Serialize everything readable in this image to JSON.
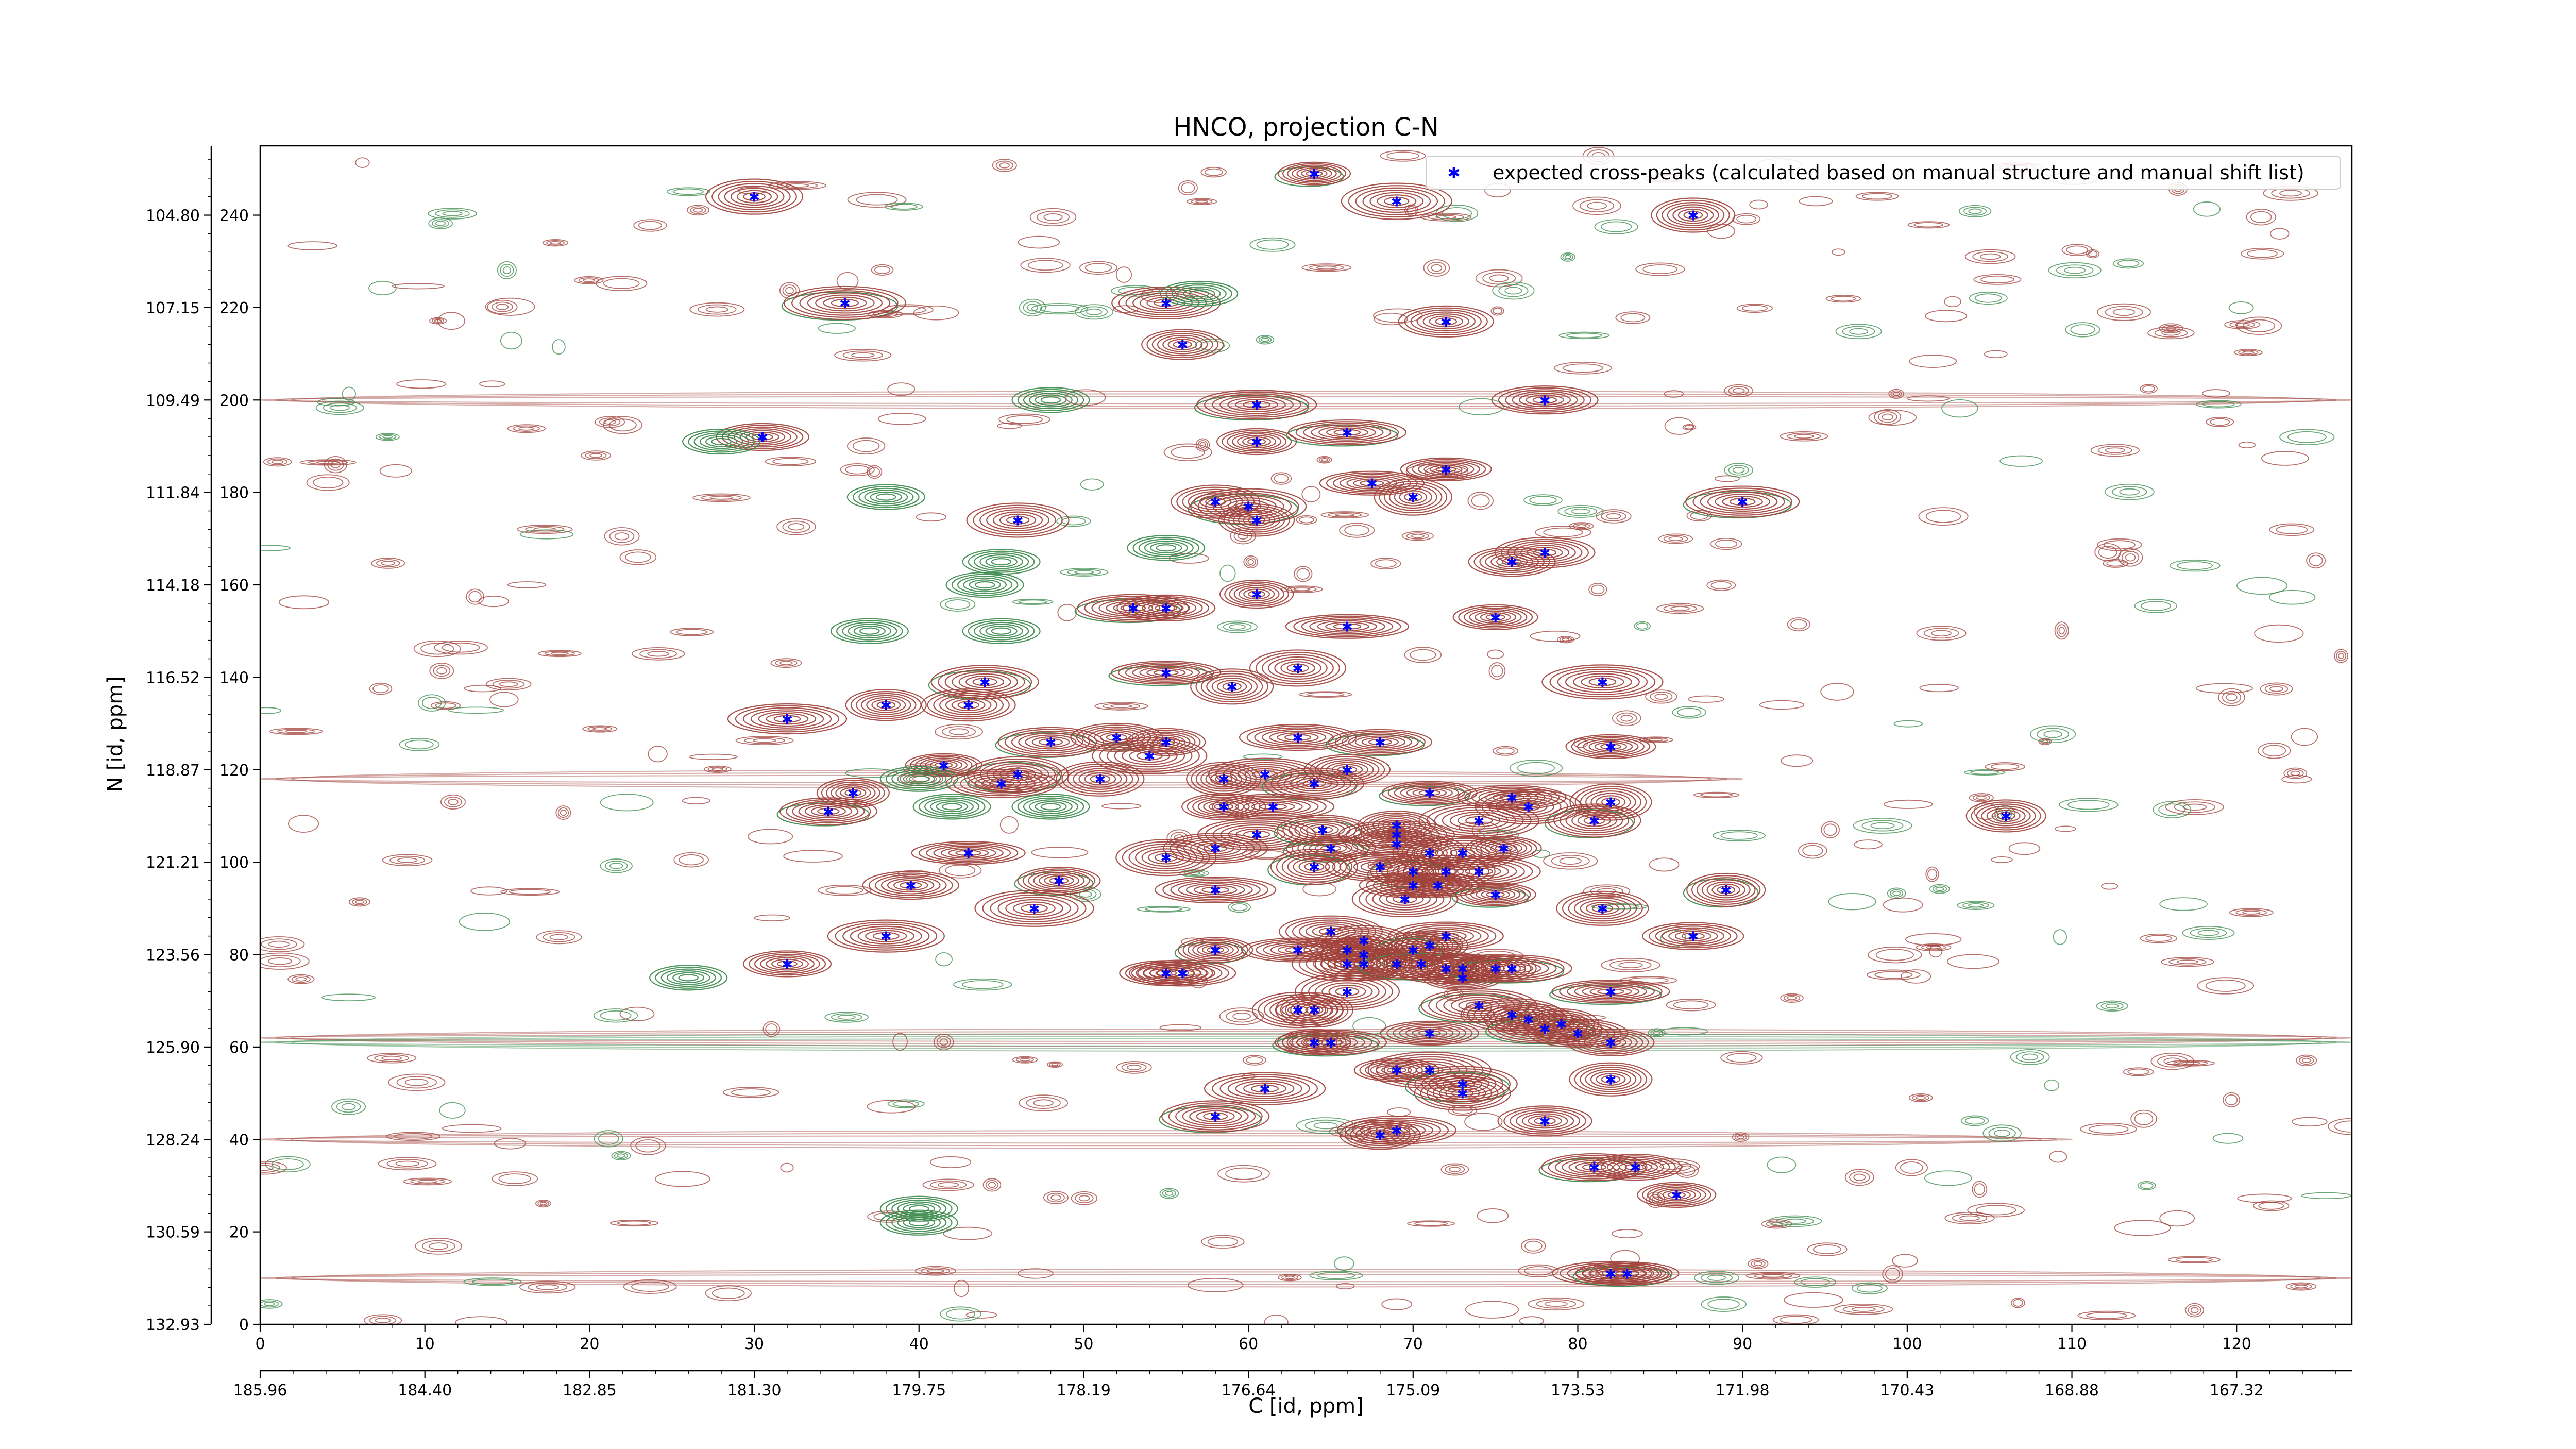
{
  "chart_data": {
    "type": "scatter",
    "title": "HNCO, projection C-N",
    "xlabel": "C [id, ppm]",
    "ylabel": "N [id, ppm]",
    "xlim": [
      0,
      127
    ],
    "ylim": [
      0,
      255
    ],
    "x_ticks": [
      0,
      10,
      20,
      30,
      40,
      50,
      60,
      70,
      80,
      90,
      100,
      110,
      120
    ],
    "y_ticks": [
      0,
      20,
      40,
      60,
      80,
      100,
      120,
      140,
      160,
      180,
      200,
      220,
      240
    ],
    "x_ppm_labels": [
      "185.96",
      "184.40",
      "182.85",
      "181.30",
      "179.75",
      "178.19",
      "176.64",
      "175.09",
      "173.53",
      "171.98",
      "170.43",
      "168.88",
      "167.32"
    ],
    "y_ppm_labels": [
      "132.93",
      "130.59",
      "128.24",
      "125.90",
      "123.56",
      "121.21",
      "118.87",
      "116.52",
      "114.18",
      "111.84",
      "109.49",
      "107.15",
      "104.80"
    ],
    "legend": {
      "placement": "top-right",
      "entries": [
        "expected cross-peaks (calculated based on manual structure and manual shift list)"
      ]
    },
    "grid": false,
    "colors": {
      "positive_contours": "#a0403a",
      "negative_contours": "#3a8a4a",
      "marker": "#0000ff"
    },
    "series": [
      {
        "name": "expected cross-peaks (calculated based on manual structure and manual shift list)",
        "points": [
          [
            64,
            249
          ],
          [
            69,
            243
          ],
          [
            30,
            244
          ],
          [
            87,
            240
          ],
          [
            35.5,
            221
          ],
          [
            55,
            221
          ],
          [
            72,
            217
          ],
          [
            56,
            212
          ],
          [
            60.5,
            199
          ],
          [
            78,
            200
          ],
          [
            30.5,
            192
          ],
          [
            60.5,
            191
          ],
          [
            66,
            193
          ],
          [
            67.5,
            182
          ],
          [
            72,
            185
          ],
          [
            70,
            179
          ],
          [
            60,
            177
          ],
          [
            46,
            174
          ],
          [
            58,
            178
          ],
          [
            60.5,
            174
          ],
          [
            90,
            178
          ],
          [
            78,
            167
          ],
          [
            76,
            165
          ],
          [
            60.5,
            158
          ],
          [
            53,
            155
          ],
          [
            55,
            155
          ],
          [
            75,
            153
          ],
          [
            66,
            151
          ],
          [
            55,
            141
          ],
          [
            63,
            142
          ],
          [
            59,
            138
          ],
          [
            81.5,
            139
          ],
          [
            44,
            139
          ],
          [
            43,
            134
          ],
          [
            38,
            134
          ],
          [
            32,
            131
          ],
          [
            48,
            126
          ],
          [
            52,
            127
          ],
          [
            55,
            126
          ],
          [
            63,
            127
          ],
          [
            68,
            126
          ],
          [
            82,
            125
          ],
          [
            41.5,
            121
          ],
          [
            54,
            123
          ],
          [
            46,
            119
          ],
          [
            51,
            118
          ],
          [
            58.5,
            118
          ],
          [
            61,
            119
          ],
          [
            64,
            117
          ],
          [
            66,
            120
          ],
          [
            36,
            115
          ],
          [
            45,
            117
          ],
          [
            34.5,
            111
          ],
          [
            58.5,
            112
          ],
          [
            61.5,
            112
          ],
          [
            76,
            114
          ],
          [
            71,
            115
          ],
          [
            82,
            113
          ],
          [
            74,
            109
          ],
          [
            77,
            112
          ],
          [
            81,
            109
          ],
          [
            106,
            110
          ],
          [
            60.5,
            106
          ],
          [
            58,
            103
          ],
          [
            64.5,
            107
          ],
          [
            69,
            108
          ],
          [
            69,
            106
          ],
          [
            69,
            104
          ],
          [
            65,
            103
          ],
          [
            75.5,
            103
          ],
          [
            43,
            102
          ],
          [
            55,
            101
          ],
          [
            64,
            99
          ],
          [
            71,
            102
          ],
          [
            73,
            102
          ],
          [
            72,
            98
          ],
          [
            70,
            98
          ],
          [
            74,
            98
          ],
          [
            68,
            99
          ],
          [
            39.5,
            95
          ],
          [
            48.5,
            96
          ],
          [
            58,
            94
          ],
          [
            70,
            95
          ],
          [
            71.5,
            95
          ],
          [
            75,
            93
          ],
          [
            47,
            90
          ],
          [
            69.5,
            92
          ],
          [
            81.5,
            90
          ],
          [
            89,
            94
          ],
          [
            38,
            84
          ],
          [
            65,
            85
          ],
          [
            67,
            83
          ],
          [
            71,
            82
          ],
          [
            72,
            84
          ],
          [
            87,
            84
          ],
          [
            32,
            78
          ],
          [
            58,
            81
          ],
          [
            63,
            81
          ],
          [
            66,
            81
          ],
          [
            67,
            80
          ],
          [
            70,
            81
          ],
          [
            66,
            78
          ],
          [
            67,
            78
          ],
          [
            69,
            78
          ],
          [
            70.5,
            78
          ],
          [
            72,
            77
          ],
          [
            73,
            77
          ],
          [
            75,
            77
          ],
          [
            76,
            77
          ],
          [
            56,
            76
          ],
          [
            55,
            76
          ],
          [
            73,
            75
          ],
          [
            82,
            72
          ],
          [
            66,
            72
          ],
          [
            63,
            68
          ],
          [
            64,
            68
          ],
          [
            74,
            69
          ],
          [
            76,
            67
          ],
          [
            77,
            66
          ],
          [
            79,
            65
          ],
          [
            78,
            64
          ],
          [
            80,
            63
          ],
          [
            82,
            61
          ],
          [
            64,
            61
          ],
          [
            65,
            61
          ],
          [
            71,
            63
          ],
          [
            69,
            55
          ],
          [
            71,
            55
          ],
          [
            73,
            52
          ],
          [
            73,
            50
          ],
          [
            82,
            53
          ],
          [
            61,
            51
          ],
          [
            58,
            45
          ],
          [
            78,
            44
          ],
          [
            68,
            41
          ],
          [
            69,
            42
          ],
          [
            81,
            34
          ],
          [
            83.5,
            34
          ],
          [
            86,
            28
          ],
          [
            82,
            11
          ],
          [
            83,
            11
          ]
        ]
      }
    ]
  }
}
